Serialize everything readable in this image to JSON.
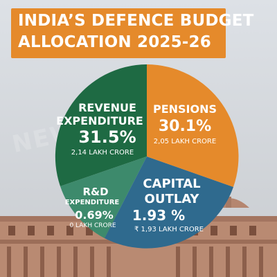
{
  "title": {
    "line1": "INDIA’S DEFENCE BUDGET",
    "line2": "ALLOCATION 2025-26"
  },
  "watermark": "NEWS ... .COM",
  "colors": {
    "revenue": "#1e6a43",
    "pensions": "#e58a2b",
    "capital": "#2f6a8e",
    "rnd": "#3d8a6c",
    "title_bg": "#e58a2b"
  },
  "chart_data": {
    "type": "pie",
    "title": "INDIA’S DEFENCE BUDGET ALLOCATION 2025-26",
    "slices": [
      {
        "key": "pensions",
        "label": "PENSIONS",
        "value": 30.1,
        "value_label": "30.1%",
        "amount": "2,05 LAKH CRORE",
        "color": "#e58a2b"
      },
      {
        "key": "capital",
        "label": "CAPITAL OUTLAY",
        "label_line1": "CAPITAL",
        "label_line2": "OUTLAY",
        "value": 1.93,
        "value_label": "1.93 %",
        "amount": "₹ 1,93 LAKH CRORE",
        "color": "#2f6a8e"
      },
      {
        "key": "rnd",
        "label": "R&D EXPENDITURE",
        "label_line1": "R&D",
        "label_line2": "EXPENDITURE",
        "value": 0.69,
        "value_label": "0.69%",
        "amount": "0 LAKH CRORE",
        "color": "#3d8a6c"
      },
      {
        "key": "revenue",
        "label": "REVENUE EXPENDITURE",
        "label_line1": "REVENUE",
        "label_line2": "EXPENDITURE",
        "value": 31.5,
        "value_label": "31.5%",
        "amount": "2,14 LAKH CRORE",
        "color": "#1e6a43"
      }
    ]
  }
}
